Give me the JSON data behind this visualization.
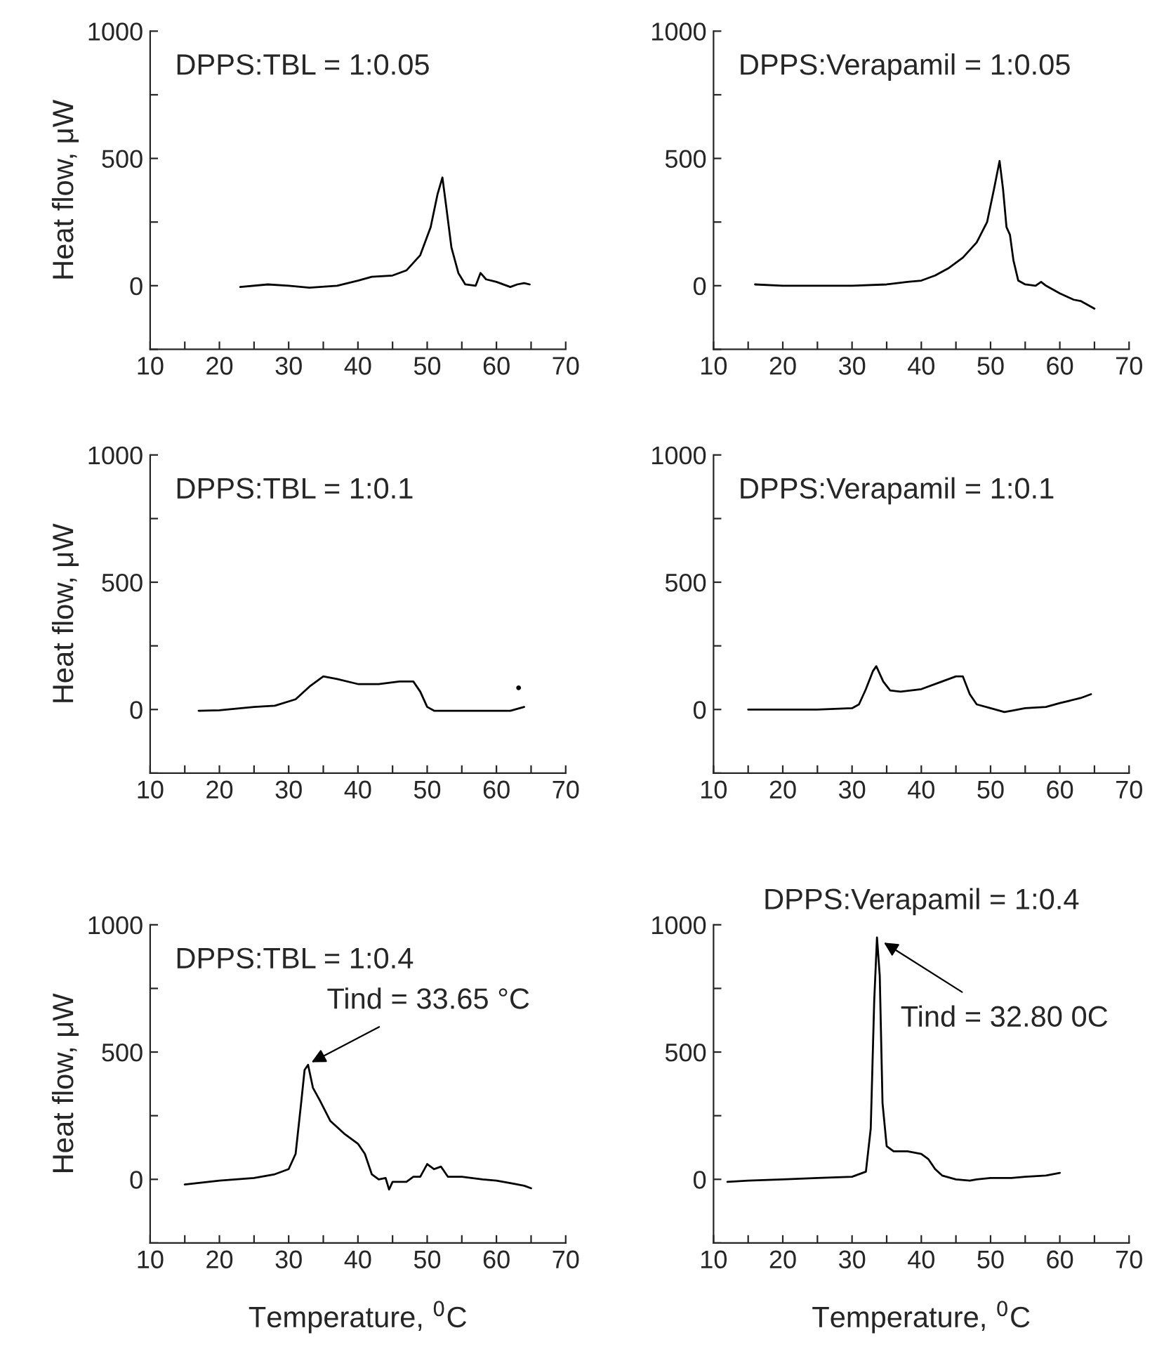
{
  "chart_data": [
    {
      "type": "line",
      "title": "DPPS:TBL = 1:0.05",
      "ylabel": "Heat flow, μW",
      "xlim": [
        10,
        70
      ],
      "ylim": [
        -250,
        1000
      ],
      "xticks": [
        10,
        {
          "value": 15,
          "label": null
        },
        20,
        {
          "value": 25,
          "label": null
        },
        30,
        {
          "value": 35,
          "label": null
        },
        40,
        {
          "value": 45,
          "label": null
        },
        50,
        {
          "value": 55,
          "label": null
        },
        60,
        {
          "value": 65,
          "label": null
        },
        70
      ],
      "yticks": [
        {
          "value": -250,
          "label": null
        },
        0,
        {
          "value": 250,
          "label": null
        },
        500,
        {
          "value": 750,
          "label": null
        },
        1000
      ],
      "grid": false,
      "legend": false,
      "series": [
        {
          "color": "#000000",
          "x": [
            23,
            27,
            30,
            33,
            37,
            40,
            42,
            45,
            47,
            49,
            50.5,
            51.5,
            52.2,
            52.8,
            53.5,
            54.5,
            55.5,
            57,
            57.7,
            58.5,
            60,
            62,
            63,
            64,
            64.8
          ],
          "values": [
            -5,
            5,
            0,
            -8,
            0,
            20,
            35,
            40,
            60,
            120,
            230,
            360,
            425,
            300,
            150,
            50,
            5,
            0,
            50,
            25,
            15,
            -5,
            5,
            10,
            5
          ]
        }
      ]
    },
    {
      "type": "line",
      "title": "DPPS:Verapamil = 1:0.05",
      "xlim": [
        10,
        70
      ],
      "ylim": [
        -250,
        1000
      ],
      "xticks": [
        10,
        {
          "value": 15,
          "label": null
        },
        20,
        {
          "value": 25,
          "label": null
        },
        30,
        {
          "value": 35,
          "label": null
        },
        40,
        {
          "value": 45,
          "label": null
        },
        50,
        {
          "value": 55,
          "label": null
        },
        60,
        {
          "value": 65,
          "label": null
        },
        70
      ],
      "yticks": [
        {
          "value": -250,
          "label": null
        },
        0,
        {
          "value": 250,
          "label": null
        },
        500,
        {
          "value": 750,
          "label": null
        },
        1000
      ],
      "grid": false,
      "legend": false,
      "series": [
        {
          "color": "#000000",
          "x": [
            16,
            20,
            25,
            30,
            35,
            38,
            40,
            42,
            44,
            46,
            48,
            49.5,
            50.5,
            51.3,
            51.8,
            52.3,
            52.8,
            53.3,
            54,
            55,
            56.5,
            57.3,
            58,
            60,
            62,
            63,
            65
          ],
          "values": [
            5,
            0,
            0,
            0,
            5,
            15,
            20,
            40,
            70,
            110,
            170,
            250,
            380,
            490,
            380,
            230,
            200,
            100,
            20,
            5,
            0,
            15,
            0,
            -30,
            -55,
            -60,
            -90
          ]
        }
      ]
    },
    {
      "type": "line",
      "title": "DPPS:TBL = 1:0.1",
      "ylabel": "Heat flow, μW",
      "xlim": [
        10,
        70
      ],
      "ylim": [
        -250,
        1000
      ],
      "xticks": [
        10,
        {
          "value": 15,
          "label": null
        },
        20,
        {
          "value": 25,
          "label": null
        },
        30,
        {
          "value": 35,
          "label": null
        },
        40,
        {
          "value": 45,
          "label": null
        },
        50,
        {
          "value": 55,
          "label": null
        },
        60,
        {
          "value": 65,
          "label": null
        },
        70
      ],
      "yticks": [
        {
          "value": -250,
          "label": null
        },
        0,
        {
          "value": 250,
          "label": null
        },
        500,
        {
          "value": 750,
          "label": null
        },
        1000
      ],
      "grid": false,
      "legend": false,
      "series": [
        {
          "color": "#000000",
          "x": [
            17,
            20,
            25,
            28,
            31,
            33,
            35,
            37,
            40,
            43,
            46,
            48,
            49,
            50,
            51,
            55,
            62,
            64
          ],
          "values": [
            -5,
            -3,
            10,
            15,
            40,
            90,
            130,
            120,
            100,
            100,
            110,
            110,
            70,
            10,
            -5,
            -5,
            -5,
            10
          ]
        },
        {
          "type": "scatter",
          "color": "#000000",
          "x": [
            63.2
          ],
          "values": [
            85
          ]
        }
      ]
    },
    {
      "type": "line",
      "title": "DPPS:Verapamil = 1:0.1",
      "xlim": [
        10,
        70
      ],
      "ylim": [
        -250,
        1000
      ],
      "xticks": [
        10,
        {
          "value": 15,
          "label": null
        },
        20,
        {
          "value": 25,
          "label": null
        },
        30,
        {
          "value": 35,
          "label": null
        },
        40,
        {
          "value": 45,
          "label": null
        },
        50,
        {
          "value": 55,
          "label": null
        },
        60,
        {
          "value": 65,
          "label": null
        },
        70
      ],
      "yticks": [
        {
          "value": -250,
          "label": null
        },
        0,
        {
          "value": 250,
          "label": null
        },
        500,
        {
          "value": 750,
          "label": null
        },
        1000
      ],
      "grid": false,
      "legend": false,
      "series": [
        {
          "color": "#000000",
          "x": [
            15,
            20,
            25,
            30,
            31,
            32,
            33,
            33.5,
            34.5,
            35.5,
            37,
            40,
            43,
            45,
            46,
            47,
            48,
            50,
            52,
            53,
            55,
            58,
            60,
            63,
            64.5
          ],
          "values": [
            0,
            0,
            0,
            5,
            20,
            80,
            150,
            170,
            110,
            75,
            70,
            80,
            110,
            130,
            130,
            60,
            20,
            5,
            -10,
            -5,
            5,
            10,
            25,
            45,
            60
          ]
        }
      ]
    },
    {
      "type": "line",
      "title": "DPPS:TBL = 1:0.4",
      "xlabel": "Temperature, $^{0}$C",
      "ylabel": "Heat flow, μW",
      "xlim": [
        10,
        70
      ],
      "ylim": [
        -250,
        1000
      ],
      "xticks": [
        10,
        {
          "value": 15,
          "label": null
        },
        20,
        {
          "value": 25,
          "label": null
        },
        30,
        {
          "value": 35,
          "label": null
        },
        40,
        {
          "value": 45,
          "label": null
        },
        50,
        {
          "value": 55,
          "label": null
        },
        60,
        {
          "value": 65,
          "label": null
        },
        70
      ],
      "yticks": [
        {
          "value": -250,
          "label": null
        },
        0,
        {
          "value": 250,
          "label": null
        },
        500,
        {
          "value": 750,
          "label": null
        },
        1000
      ],
      "grid": false,
      "legend": false,
      "annotations": [
        {
          "text": "Tind = 33.65 °C",
          "x": 33.3,
          "y": 460
        }
      ],
      "series": [
        {
          "color": "#000000",
          "x": [
            15,
            20,
            25,
            28,
            30,
            31,
            31.8,
            32.3,
            32.8,
            33.5,
            34.5,
            36,
            38,
            40,
            41,
            42,
            43,
            44,
            44.5,
            45,
            47,
            48,
            49,
            50,
            51,
            52,
            53,
            55,
            58,
            60,
            62,
            64,
            65
          ],
          "values": [
            -20,
            -5,
            5,
            20,
            40,
            100,
            300,
            430,
            450,
            360,
            310,
            230,
            180,
            140,
            100,
            20,
            0,
            5,
            -40,
            -10,
            -10,
            10,
            10,
            60,
            40,
            50,
            10,
            10,
            0,
            -5,
            -15,
            -25,
            -35
          ]
        }
      ]
    },
    {
      "type": "line",
      "title": "DPPS:Verapamil = 1:0.4",
      "xlabel": "Temperature, $^{0}$C",
      "xlim": [
        10,
        70
      ],
      "ylim": [
        -250,
        1000
      ],
      "xticks": [
        10,
        {
          "value": 15,
          "label": null
        },
        20,
        {
          "value": 25,
          "label": null
        },
        30,
        {
          "value": 35,
          "label": null
        },
        40,
        {
          "value": 45,
          "label": null
        },
        50,
        {
          "value": 55,
          "label": null
        },
        60,
        {
          "value": 65,
          "label": null
        },
        70
      ],
      "yticks": [
        {
          "value": -250,
          "label": null
        },
        0,
        {
          "value": 250,
          "label": null
        },
        500,
        {
          "value": 750,
          "label": null
        },
        1000
      ],
      "grid": false,
      "legend": false,
      "annotations": [
        {
          "text": "Tind = 32.80 0C",
          "x": 34.6,
          "y": 930
        }
      ],
      "series": [
        {
          "color": "#000000",
          "x": [
            12,
            15,
            20,
            25,
            30,
            32,
            32.7,
            33.2,
            33.6,
            34,
            34.4,
            35,
            36,
            38,
            40,
            41,
            42,
            43,
            45,
            47,
            48,
            50,
            53,
            55,
            58,
            60
          ],
          "values": [
            -10,
            -5,
            0,
            5,
            10,
            30,
            200,
            700,
            950,
            800,
            300,
            130,
            110,
            110,
            100,
            80,
            40,
            15,
            0,
            -5,
            0,
            5,
            5,
            10,
            15,
            25
          ]
        }
      ]
    }
  ]
}
